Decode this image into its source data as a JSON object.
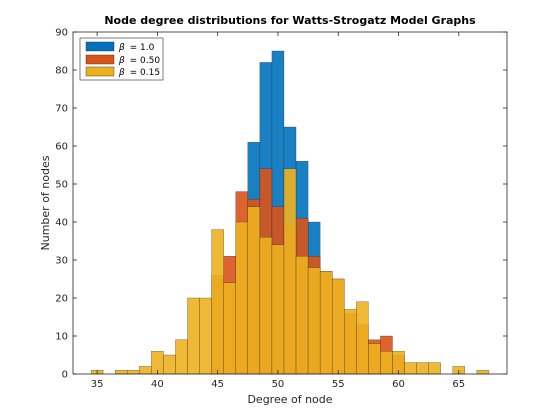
{
  "chart_data": {
    "type": "bar",
    "title": "Node degree distributions for Watts-Strogatz Model Graphs",
    "xlabel": "Degree of node",
    "ylabel": "Number of nodes",
    "xlim": [
      33,
      69
    ],
    "ylim": [
      0,
      90
    ],
    "xticks": [
      35,
      40,
      45,
      50,
      55,
      60,
      65
    ],
    "yticks": [
      0,
      10,
      20,
      30,
      40,
      50,
      60,
      70,
      80,
      90
    ],
    "bin_width": 1,
    "grid": false,
    "legend_position": "top-left",
    "series": [
      {
        "name": "β = 1.0",
        "label_symbol": "β",
        "label_value": "= 1.0",
        "color": "#0072BD",
        "opacity": 0.9,
        "points": [
          [
            47,
            1
          ],
          [
            48,
            61
          ],
          [
            49,
            82
          ],
          [
            50,
            85
          ],
          [
            51,
            65
          ],
          [
            52,
            56
          ],
          [
            53,
            40
          ]
        ]
      },
      {
        "name": "β = 0.50",
        "label_symbol": "β",
        "label_value": "= 0.50",
        "color": "#D95319",
        "opacity": 0.9,
        "points": [
          [
            45,
            26
          ],
          [
            46,
            31
          ],
          [
            47,
            48
          ],
          [
            48,
            46
          ],
          [
            49,
            54
          ],
          [
            50,
            44
          ],
          [
            51,
            39
          ],
          [
            52,
            41
          ],
          [
            53,
            31
          ],
          [
            54,
            27
          ],
          [
            55,
            25
          ],
          [
            56,
            16
          ],
          [
            57,
            13
          ],
          [
            58,
            9
          ],
          [
            59,
            10
          ],
          [
            60,
            5
          ]
        ]
      },
      {
        "name": "β = 0.15",
        "label_symbol": "β",
        "label_value": "= 0.15",
        "color": "#EDB120",
        "opacity": 0.9,
        "points": [
          [
            35,
            1
          ],
          [
            37,
            1
          ],
          [
            38,
            1
          ],
          [
            39,
            2
          ],
          [
            40,
            6
          ],
          [
            41,
            5
          ],
          [
            42,
            9
          ],
          [
            43,
            20
          ],
          [
            44,
            20
          ],
          [
            45,
            38
          ],
          [
            46,
            24
          ],
          [
            47,
            40
          ],
          [
            48,
            44
          ],
          [
            49,
            36
          ],
          [
            50,
            34
          ],
          [
            51,
            54
          ],
          [
            52,
            31
          ],
          [
            53,
            28
          ],
          [
            54,
            27
          ],
          [
            55,
            25
          ],
          [
            56,
            17
          ],
          [
            57,
            19
          ],
          [
            58,
            8
          ],
          [
            59,
            6
          ],
          [
            60,
            6
          ],
          [
            61,
            3
          ],
          [
            62,
            3
          ],
          [
            63,
            3
          ],
          [
            65,
            2
          ],
          [
            67,
            1
          ]
        ]
      }
    ]
  }
}
